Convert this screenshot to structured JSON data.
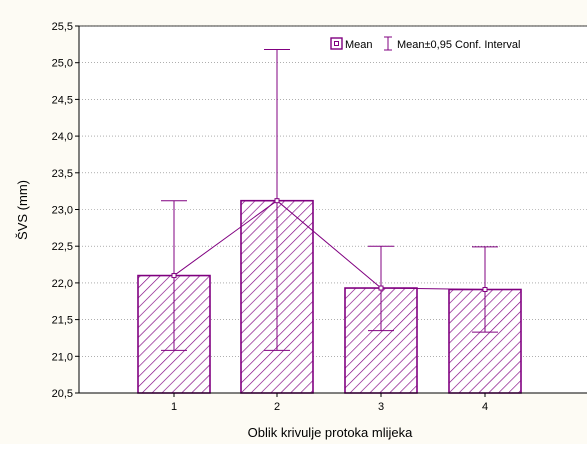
{
  "colors": {
    "background": "#fdfbf4",
    "plot_background": "#ffffff",
    "series": "#800080",
    "grid": "#7f7f7f"
  },
  "chart_data": {
    "type": "bar",
    "title": "",
    "xlabel": "Oblik krivulje protoka mlijeka",
    "ylabel": "ŠVS (mm)",
    "categories": [
      "1",
      "2",
      "3",
      "4"
    ],
    "ylim": [
      20.5,
      25.5
    ],
    "yticks": [
      "20,5",
      "21,0",
      "21,5",
      "22,0",
      "22,5",
      "23,0",
      "23,5",
      "24,0",
      "24,5",
      "25,0",
      "25,5"
    ],
    "ytick_values": [
      20.5,
      21.0,
      21.5,
      22.0,
      22.5,
      23.0,
      23.5,
      24.0,
      24.5,
      25.0,
      25.5
    ],
    "grid": true,
    "legend_position": "top-right",
    "series": [
      {
        "name": "Mean",
        "values": [
          22.1,
          23.12,
          21.93,
          21.91
        ],
        "ci_lower": [
          21.08,
          21.08,
          21.35,
          21.33
        ],
        "ci_upper": [
          23.12,
          25.18,
          22.5,
          22.49
        ]
      }
    ],
    "legend": {
      "mean_label": "Mean",
      "ci_label": "Mean±0,95 Conf. Interval"
    }
  }
}
